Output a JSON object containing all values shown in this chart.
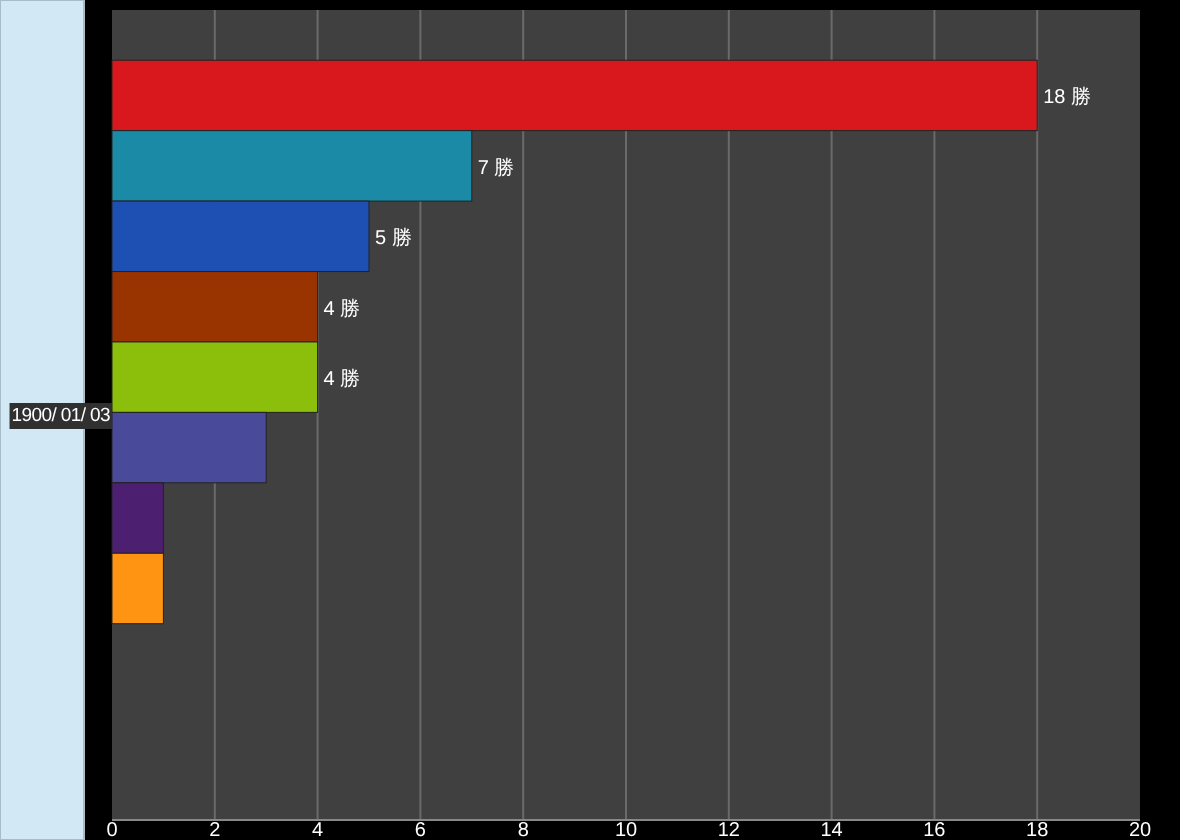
{
  "chart_data": {
    "type": "bar",
    "orientation": "horizontal",
    "categories": [
      "1900/ 01/ 03"
    ],
    "series": [
      {
        "color": "#d8181c",
        "values": [
          18
        ],
        "value_labels": [
          "18 勝"
        ]
      },
      {
        "color": "#1a8aa6",
        "values": [
          7
        ],
        "value_labels": [
          "7 勝"
        ]
      },
      {
        "color": "#1e50b4",
        "values": [
          5
        ],
        "value_labels": [
          "5 勝"
        ]
      },
      {
        "color": "#993300",
        "values": [
          4
        ],
        "value_labels": [
          "4 勝"
        ]
      },
      {
        "color": "#8cbf0c",
        "values": [
          4
        ],
        "value_labels": [
          "4 勝"
        ]
      },
      {
        "color": "#4a4a9a",
        "values": [
          3
        ],
        "value_labels": [
          null
        ]
      },
      {
        "color": "#4d1f70",
        "values": [
          1
        ],
        "value_labels": [
          null
        ]
      },
      {
        "color": "#ff9412",
        "values": [
          1
        ],
        "value_labels": [
          null
        ]
      }
    ],
    "xlim": [
      0,
      20
    ],
    "xticks": [
      0,
      2,
      4,
      6,
      8,
      10,
      12,
      14,
      16,
      18,
      20
    ],
    "grid": "x"
  }
}
